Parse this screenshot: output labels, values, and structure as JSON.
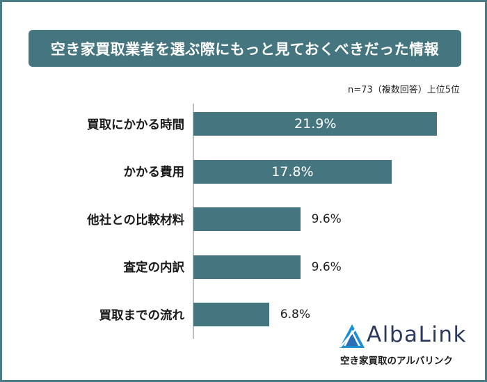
{
  "header": {
    "title": "空き家買取業者を選ぶ際にもっと見ておくべきだった情報",
    "note": "n=73（複数回答）上位5位"
  },
  "chart_data": {
    "type": "bar",
    "orientation": "horizontal",
    "categories": [
      "買取にかかる時間",
      "かかる費用",
      "他社との比較材料",
      "査定の内訳",
      "買取までの流れ"
    ],
    "values": [
      21.9,
      17.8,
      9.6,
      9.6,
      6.8
    ],
    "value_labels": [
      "21.9%",
      "17.8%",
      "9.6%",
      "9.6%",
      "6.8%"
    ],
    "unit": "%",
    "xlim": [
      0,
      25
    ],
    "bar_color": "#45767f",
    "grid": false
  },
  "brand": {
    "name": "AlbaLink",
    "tagline": "空き家買取のアルバリンク",
    "mark_icon": "triangle-logo-icon",
    "colors": {
      "primary": "#45767f",
      "logo_text": "#2b3a5c",
      "logo_blue": "#1a8fd6"
    }
  }
}
